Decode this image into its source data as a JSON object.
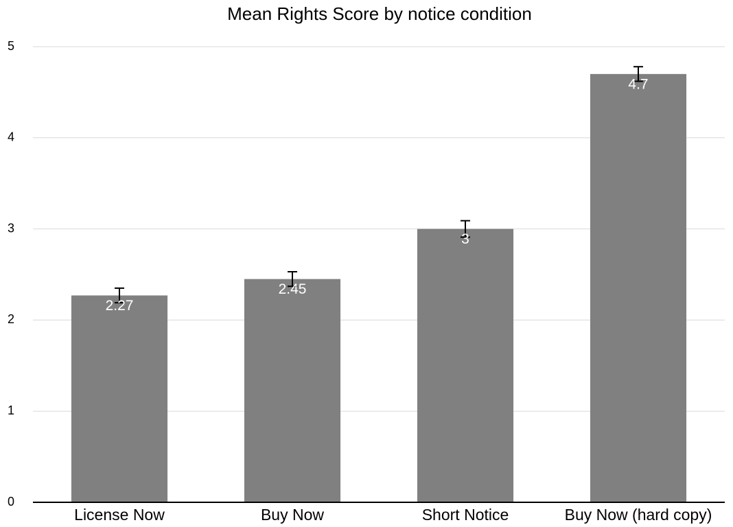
{
  "chart_data": {
    "type": "bar",
    "title": "Mean Rights Score by notice condition",
    "categories": [
      "License Now",
      "Buy Now",
      "Short Notice",
      "Buy Now (hard copy)"
    ],
    "values": [
      2.27,
      2.45,
      3,
      4.7
    ],
    "errors": [
      0.08,
      0.08,
      0.09,
      0.08
    ],
    "color": "#808080",
    "ylim": [
      0,
      5
    ],
    "yticks": [
      0,
      1,
      2,
      3,
      4,
      5
    ],
    "grid": true
  }
}
